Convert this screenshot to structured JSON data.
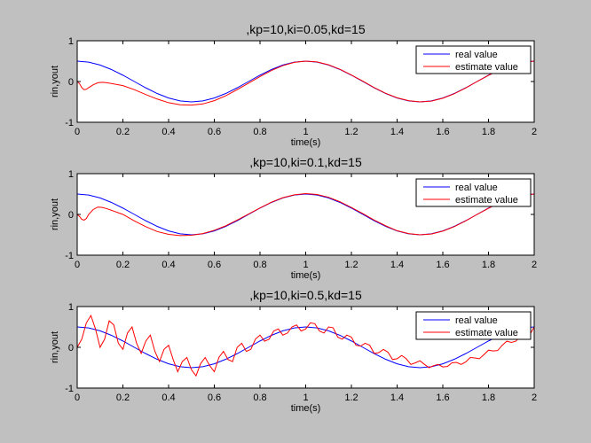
{
  "colors": {
    "figure_bg": "#c0c0c0",
    "axes_bg": "#ffffff",
    "real": "#0000ff",
    "estimate": "#ff0000"
  },
  "chart_data": [
    {
      "type": "line",
      "title": ",kp=10,ki=0.05,kd=15",
      "xlabel": "time(s)",
      "ylabel": "rin,yout",
      "xlim": [
        0,
        2
      ],
      "ylim": [
        -1,
        1
      ],
      "xticks": [
        "0",
        "0.2",
        "0.4",
        "0.6",
        "0.8",
        "1",
        "1.2",
        "1.4",
        "1.6",
        "1.8",
        "2"
      ],
      "yticks": [
        "-1",
        "0",
        "1"
      ],
      "grid": false,
      "legend_position": "top-right",
      "series": [
        {
          "name": "real value",
          "color": "#0000ff",
          "x": [
            0,
            0.05,
            0.1,
            0.15,
            0.2,
            0.25,
            0.3,
            0.35,
            0.4,
            0.45,
            0.5,
            0.55,
            0.6,
            0.65,
            0.7,
            0.75,
            0.8,
            0.85,
            0.9,
            0.95,
            1,
            1.05,
            1.1,
            1.15,
            1.2,
            1.25,
            1.3,
            1.35,
            1.4,
            1.45,
            1.5,
            1.55,
            1.6,
            1.65,
            1.7,
            1.75,
            1.8,
            1.85,
            1.9,
            1.95,
            2
          ],
          "values": [
            0.5,
            0.476,
            0.405,
            0.294,
            0.155,
            0,
            -0.155,
            -0.294,
            -0.405,
            -0.476,
            -0.5,
            -0.476,
            -0.405,
            -0.294,
            -0.155,
            0,
            0.155,
            0.294,
            0.405,
            0.476,
            0.5,
            0.476,
            0.405,
            0.294,
            0.155,
            0,
            -0.155,
            -0.294,
            -0.405,
            -0.476,
            -0.5,
            -0.476,
            -0.405,
            -0.294,
            -0.155,
            0,
            0.155,
            0.294,
            0.405,
            0.476,
            0.5
          ]
        },
        {
          "name": "estimate value",
          "color": "#ff0000",
          "x": [
            0,
            0.01,
            0.02,
            0.03,
            0.04,
            0.05,
            0.07,
            0.09,
            0.11,
            0.13,
            0.15,
            0.2,
            0.25,
            0.3,
            0.35,
            0.4,
            0.45,
            0.5,
            0.55,
            0.6,
            0.65,
            0.7,
            0.75,
            0.8,
            0.85,
            0.9,
            0.95,
            1,
            1.05,
            1.1,
            1.15,
            1.2,
            1.25,
            1.3,
            1.35,
            1.4,
            1.45,
            1.5,
            1.55,
            1.6,
            1.65,
            1.7,
            1.75,
            1.8,
            1.85,
            1.9,
            1.95,
            2
          ],
          "values": [
            0,
            -0.05,
            -0.15,
            -0.2,
            -0.19,
            -0.15,
            -0.08,
            -0.03,
            -0.02,
            -0.03,
            -0.05,
            -0.1,
            -0.2,
            -0.32,
            -0.43,
            -0.52,
            -0.57,
            -0.58,
            -0.55,
            -0.47,
            -0.35,
            -0.2,
            -0.04,
            0.12,
            0.27,
            0.39,
            0.47,
            0.5,
            0.48,
            0.41,
            0.3,
            0.16,
            0.01,
            -0.15,
            -0.29,
            -0.4,
            -0.47,
            -0.5,
            -0.48,
            -0.41,
            -0.3,
            -0.16,
            0,
            0.15,
            0.29,
            0.4,
            0.47,
            0.5
          ]
        }
      ]
    },
    {
      "type": "line",
      "title": ",kp=10,ki=0.1,kd=15",
      "xlabel": "time(s)",
      "ylabel": "rin,yout",
      "xlim": [
        0,
        2
      ],
      "ylim": [
        -1,
        1
      ],
      "xticks": [
        "0",
        "0.2",
        "0.4",
        "0.6",
        "0.8",
        "1",
        "1.2",
        "1.4",
        "1.6",
        "1.8",
        "2"
      ],
      "yticks": [
        "-1",
        "0",
        "1"
      ],
      "grid": false,
      "legend_position": "top-right",
      "series": [
        {
          "name": "real value",
          "color": "#0000ff",
          "x": [
            0,
            0.05,
            0.1,
            0.15,
            0.2,
            0.25,
            0.3,
            0.35,
            0.4,
            0.45,
            0.5,
            0.55,
            0.6,
            0.65,
            0.7,
            0.75,
            0.8,
            0.85,
            0.9,
            0.95,
            1,
            1.05,
            1.1,
            1.15,
            1.2,
            1.25,
            1.3,
            1.35,
            1.4,
            1.45,
            1.5,
            1.55,
            1.6,
            1.65,
            1.7,
            1.75,
            1.8,
            1.85,
            1.9,
            1.95,
            2
          ],
          "values": [
            0.5,
            0.476,
            0.405,
            0.294,
            0.155,
            0,
            -0.155,
            -0.294,
            -0.405,
            -0.476,
            -0.5,
            -0.476,
            -0.405,
            -0.294,
            -0.155,
            0,
            0.155,
            0.294,
            0.405,
            0.476,
            0.5,
            0.476,
            0.405,
            0.294,
            0.155,
            0,
            -0.155,
            -0.294,
            -0.405,
            -0.476,
            -0.5,
            -0.476,
            -0.405,
            -0.294,
            -0.155,
            0,
            0.155,
            0.294,
            0.405,
            0.476,
            0.5
          ]
        },
        {
          "name": "estimate value",
          "color": "#ff0000",
          "x": [
            0,
            0.01,
            0.02,
            0.03,
            0.04,
            0.05,
            0.07,
            0.09,
            0.11,
            0.13,
            0.15,
            0.2,
            0.25,
            0.3,
            0.35,
            0.4,
            0.45,
            0.5,
            0.55,
            0.6,
            0.65,
            0.7,
            0.75,
            0.8,
            0.85,
            0.9,
            0.95,
            1,
            1.05,
            1.1,
            1.15,
            1.2,
            1.25,
            1.3,
            1.35,
            1.4,
            1.45,
            1.5,
            1.55,
            1.6,
            1.65,
            1.7,
            1.75,
            1.8,
            1.85,
            1.9,
            1.95,
            2
          ],
          "values": [
            0,
            -0.05,
            -0.12,
            -0.14,
            -0.1,
            0,
            0.12,
            0.18,
            0.17,
            0.14,
            0.1,
            0,
            -0.16,
            -0.3,
            -0.42,
            -0.49,
            -0.52,
            -0.51,
            -0.47,
            -0.39,
            -0.28,
            -0.14,
            0.01,
            0.16,
            0.3,
            0.41,
            0.48,
            0.51,
            0.49,
            0.42,
            0.31,
            0.17,
            0.02,
            -0.14,
            -0.28,
            -0.4,
            -0.47,
            -0.5,
            -0.48,
            -0.41,
            -0.3,
            -0.16,
            0,
            0.15,
            0.29,
            0.4,
            0.47,
            0.5
          ]
        }
      ]
    },
    {
      "type": "line",
      "title": ",kp=10,ki=0.5,kd=15",
      "xlabel": "time(s)",
      "ylabel": "rin,yout",
      "xlim": [
        0,
        2
      ],
      "ylim": [
        -1,
        1
      ],
      "xticks": [
        "0",
        "0.2",
        "0.4",
        "0.6",
        "0.8",
        "1",
        "1.2",
        "1.4",
        "1.6",
        "1.8",
        "2"
      ],
      "yticks": [
        "-1",
        "0",
        "1"
      ],
      "grid": false,
      "legend_position": "top-right",
      "series": [
        {
          "name": "real value",
          "color": "#0000ff",
          "x": [
            0,
            0.05,
            0.1,
            0.15,
            0.2,
            0.25,
            0.3,
            0.35,
            0.4,
            0.45,
            0.5,
            0.55,
            0.6,
            0.65,
            0.7,
            0.75,
            0.8,
            0.85,
            0.9,
            0.95,
            1,
            1.05,
            1.1,
            1.15,
            1.2,
            1.25,
            1.3,
            1.35,
            1.4,
            1.45,
            1.5,
            1.55,
            1.6,
            1.65,
            1.7,
            1.75,
            1.8,
            1.85,
            1.9,
            1.95,
            2
          ],
          "values": [
            0.5,
            0.476,
            0.405,
            0.294,
            0.155,
            0,
            -0.155,
            -0.294,
            -0.405,
            -0.476,
            -0.5,
            -0.476,
            -0.405,
            -0.294,
            -0.155,
            0,
            0.155,
            0.294,
            0.405,
            0.476,
            0.5,
            0.476,
            0.405,
            0.294,
            0.155,
            0,
            -0.155,
            -0.294,
            -0.405,
            -0.476,
            -0.5,
            -0.476,
            -0.405,
            -0.294,
            -0.155,
            0,
            0.155,
            0.294,
            0.405,
            0.476,
            0.5
          ]
        },
        {
          "name": "estimate value",
          "color": "#ff0000",
          "x": [
            0,
            0.02,
            0.04,
            0.06,
            0.08,
            0.1,
            0.12,
            0.14,
            0.16,
            0.18,
            0.2,
            0.22,
            0.24,
            0.26,
            0.28,
            0.3,
            0.32,
            0.34,
            0.36,
            0.38,
            0.4,
            0.42,
            0.44,
            0.46,
            0.48,
            0.5,
            0.52,
            0.54,
            0.56,
            0.58,
            0.6,
            0.62,
            0.64,
            0.66,
            0.68,
            0.7,
            0.72,
            0.74,
            0.76,
            0.78,
            0.8,
            0.82,
            0.84,
            0.86,
            0.88,
            0.9,
            0.92,
            0.94,
            0.96,
            0.98,
            1,
            1.02,
            1.04,
            1.06,
            1.08,
            1.1,
            1.12,
            1.14,
            1.16,
            1.18,
            1.2,
            1.22,
            1.24,
            1.26,
            1.28,
            1.3,
            1.32,
            1.34,
            1.36,
            1.38,
            1.4,
            1.42,
            1.44,
            1.46,
            1.48,
            1.5,
            1.52,
            1.54,
            1.56,
            1.58,
            1.6,
            1.62,
            1.64,
            1.66,
            1.68,
            1.7,
            1.72,
            1.74,
            1.76,
            1.78,
            1.8,
            1.82,
            1.84,
            1.86,
            1.88,
            1.9,
            1.92,
            1.94,
            1.96,
            1.98,
            2
          ],
          "values": [
            0,
            0.2,
            0.6,
            0.78,
            0.45,
            0,
            0.2,
            0.65,
            0.55,
            0.1,
            -0.05,
            0.35,
            0.5,
            0.1,
            -0.15,
            0.15,
            0.3,
            -0.1,
            -0.35,
            -0.05,
            0.05,
            -0.3,
            -0.6,
            -0.35,
            -0.25,
            -0.55,
            -0.7,
            -0.4,
            -0.25,
            -0.45,
            -0.6,
            -0.25,
            -0.1,
            -0.3,
            -0.35,
            0,
            0.1,
            -0.1,
            -0.05,
            0.2,
            0.3,
            0.15,
            0.2,
            0.4,
            0.45,
            0.3,
            0.35,
            0.5,
            0.55,
            0.4,
            0.45,
            0.6,
            0.58,
            0.4,
            0.35,
            0.5,
            0.48,
            0.25,
            0.2,
            0.3,
            0.25,
            0.05,
            0.03,
            0.1,
            0.05,
            -0.15,
            -0.13,
            -0.05,
            -0.12,
            -0.3,
            -0.28,
            -0.2,
            -0.28,
            -0.42,
            -0.38,
            -0.33,
            -0.42,
            -0.5,
            -0.45,
            -0.42,
            -0.48,
            -0.47,
            -0.38,
            -0.37,
            -0.42,
            -0.36,
            -0.25,
            -0.26,
            -0.28,
            -0.18,
            -0.07,
            -0.09,
            -0.08,
            0.05,
            0.15,
            0.12,
            0.15,
            0.28,
            0.35,
            0.3,
            0.5
          ]
        }
      ]
    }
  ]
}
